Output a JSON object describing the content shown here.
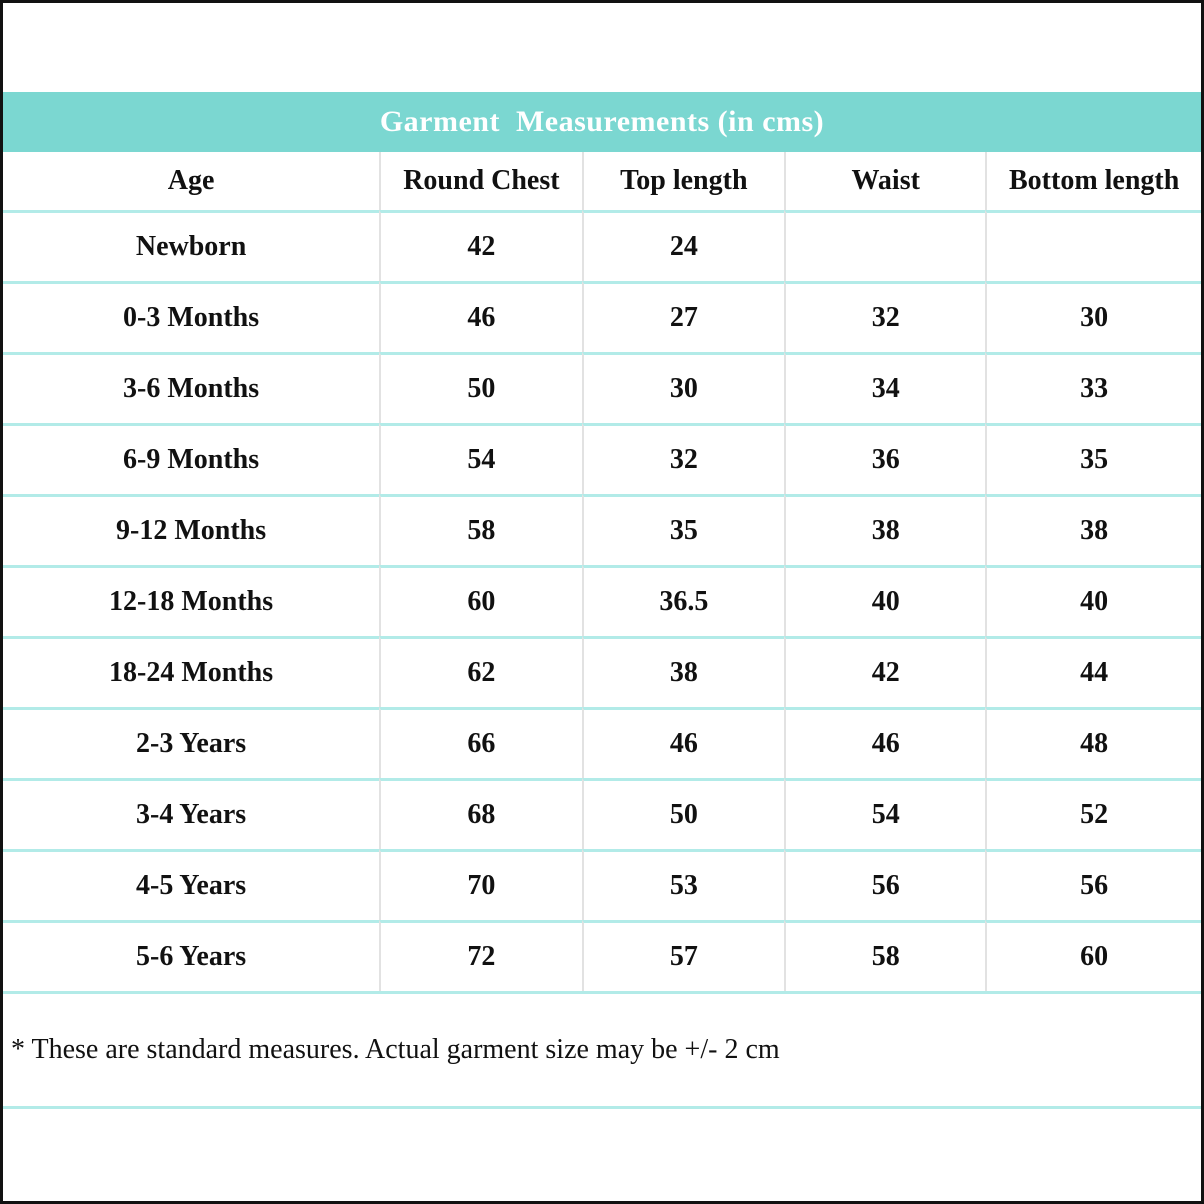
{
  "page": {
    "background": "#ffffff",
    "border_color": "#111111"
  },
  "title_bar": {
    "label": "Garment  Measurements (in cms)",
    "background": "#7bd7d1",
    "text_color": "#ffffff"
  },
  "table": {
    "columns": [
      "Age",
      "Round Chest",
      "Top length",
      "Waist",
      "Bottom length"
    ],
    "rows": [
      [
        "Newborn",
        "42",
        "24",
        "",
        ""
      ],
      [
        "0-3 Months",
        "46",
        "27",
        "32",
        "30"
      ],
      [
        "3-6 Months",
        "50",
        "30",
        "34",
        "33"
      ],
      [
        "6-9 Months",
        "54",
        "32",
        "36",
        "35"
      ],
      [
        "9-12 Months",
        "58",
        "35",
        "38",
        "38"
      ],
      [
        "12-18 Months",
        "60",
        "36.5",
        "40",
        "40"
      ],
      [
        "18-24 Months",
        "62",
        "38",
        "42",
        "44"
      ],
      [
        "2-3 Years",
        "66",
        "46",
        "46",
        "48"
      ],
      [
        "3-4 Years",
        "68",
        "50",
        "54",
        "52"
      ],
      [
        "4-5 Years",
        "70",
        "53",
        "56",
        "56"
      ],
      [
        "5-6 Years",
        "72",
        "57",
        "58",
        "60"
      ]
    ],
    "row_divider_color": "#b2ebe8",
    "column_divider_color": "#e2e2e2"
  },
  "footnote": {
    "text": "* These are standard measures. Actual garment size may be +/- 2 cm"
  }
}
